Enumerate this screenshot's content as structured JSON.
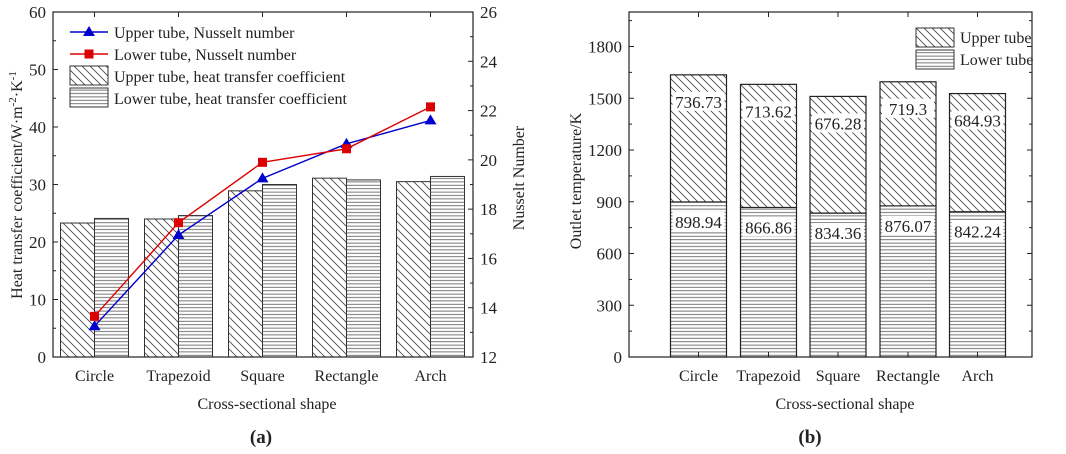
{
  "chart_data": [
    {
      "panel_label": "(a)",
      "type": "bar+line",
      "categories": [
        "Circle",
        "Trapezoid",
        "Square",
        "Rectangle",
        "Arch"
      ],
      "xlabel": "Cross-sectional shape",
      "ylabel": "Heat transfer coefficient/W·m⁻²·K⁻¹",
      "ylabel_parts": {
        "base": "Heat transfer coefficient/W·m",
        "sup1": "-2",
        "mid": "·K",
        "sup2": "-1"
      },
      "y2label": "Nusselt Number",
      "ylim": [
        0,
        60
      ],
      "yticks": [
        0,
        10,
        20,
        30,
        40,
        50,
        60
      ],
      "y2lim": [
        12,
        26
      ],
      "y2ticks": [
        12,
        14,
        16,
        18,
        20,
        22,
        24,
        26
      ],
      "legend_position": "top-left",
      "bar_series": [
        {
          "name": "Upper tube, heat transfer coefficient",
          "pattern": "diagonal",
          "values": [
            23.3,
            24.0,
            28.9,
            31.1,
            30.5
          ]
        },
        {
          "name": "Lower tube, heat transfer coefficient",
          "pattern": "horizontal",
          "values": [
            24.1,
            24.6,
            30.0,
            30.8,
            31.4
          ]
        }
      ],
      "line_series": [
        {
          "name": "Upper tube, Nusselt number",
          "color": "#0000cc",
          "marker": "triangle",
          "values": [
            13.25,
            16.95,
            19.25,
            20.65,
            21.6
          ]
        },
        {
          "name": "Lower tube, Nusselt number",
          "color": "#dd0000",
          "marker": "square",
          "values": [
            13.65,
            17.45,
            19.9,
            20.45,
            22.15
          ]
        }
      ]
    },
    {
      "panel_label": "(b)",
      "type": "stacked-bar",
      "categories": [
        "Circle",
        "Trapezoid",
        "Square",
        "Rectangle",
        "Arch"
      ],
      "xlabel": "Cross-sectional shape",
      "ylabel": "Outlet temperature/K",
      "ylim": [
        0,
        2000
      ],
      "yticks": [
        0,
        300,
        600,
        900,
        1200,
        1500,
        1800
      ],
      "legend_position": "top-right",
      "series": [
        {
          "name": "Lower tube",
          "pattern": "horizontal",
          "values": [
            898.94,
            866.86,
            834.36,
            876.07,
            842.24
          ],
          "labels": [
            "898.94",
            "866.86",
            "834.36",
            "876.07",
            "842.24"
          ]
        },
        {
          "name": "Upper tube",
          "pattern": "diagonal",
          "values": [
            736.73,
            713.62,
            676.28,
            719.3,
            684.93
          ],
          "labels": [
            "736.73",
            "713.62",
            "676.28",
            "719.3",
            "684.93"
          ]
        }
      ],
      "legend_order": [
        "Upper tube",
        "Lower tube"
      ]
    }
  ]
}
